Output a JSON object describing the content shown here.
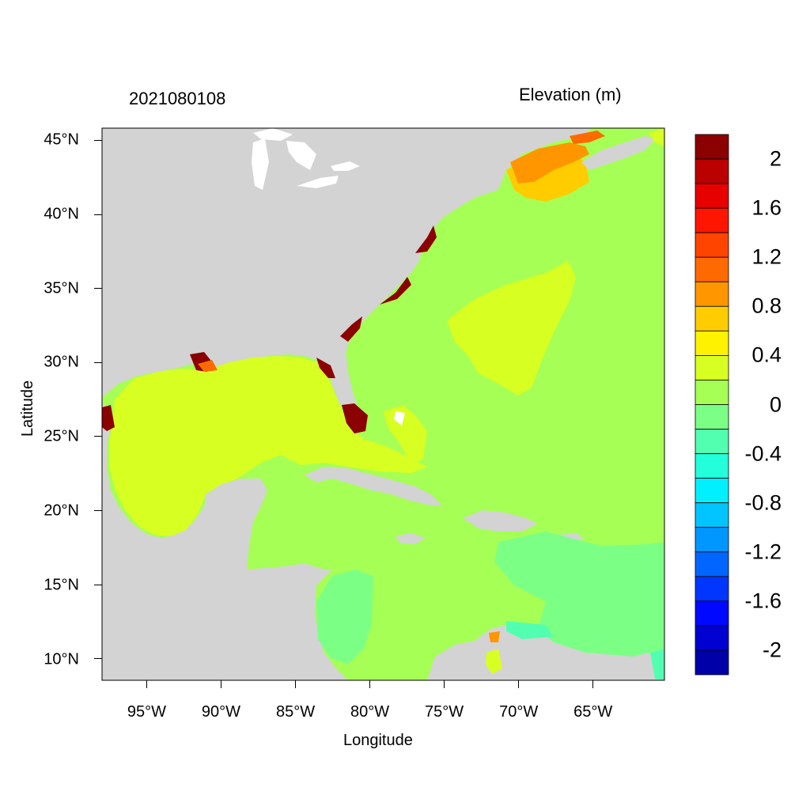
{
  "header": {
    "date_label": "2021080108",
    "variable_label": "Elevation (m)"
  },
  "axes": {
    "x_title": "Longitude",
    "y_title": "Latitude",
    "x_ticks": [
      "95°W",
      "90°W",
      "85°W",
      "80°W",
      "75°W",
      "70°W",
      "65°W"
    ],
    "x_tick_lons": [
      -95,
      -90,
      -85,
      -80,
      -75,
      -70,
      -65
    ],
    "y_ticks": [
      "10°N",
      "15°N",
      "20°N",
      "25°N",
      "30°N",
      "35°N",
      "40°N",
      "45°N"
    ],
    "y_tick_lats": [
      10,
      15,
      20,
      25,
      30,
      35,
      40,
      45
    ],
    "lon_range": [
      -98,
      -60.2
    ],
    "lat_range": [
      8.6,
      45.8
    ]
  },
  "colorbar": {
    "labels": [
      "2",
      "1.6",
      "1.2",
      "0.8",
      "0.4",
      "0",
      "-0.4",
      "-0.8",
      "-1.2",
      "-1.6",
      "-2"
    ],
    "colors": [
      "#8b0000",
      "#bb0000",
      "#e60000",
      "#ff1500",
      "#ff4400",
      "#ff6a00",
      "#ff9600",
      "#ffcc00",
      "#fff200",
      "#d8ff22",
      "#a6ff55",
      "#7cff85",
      "#52ffb0",
      "#22ffda",
      "#00f0ff",
      "#00c4ff",
      "#0096ff",
      "#0066ff",
      "#0036ff",
      "#0008ff",
      "#0000d0",
      "#0000a8"
    ]
  },
  "colors": {
    "land": "#d3d3d3",
    "ocean_zero": "#a6ff55",
    "gulf": "#d8ff22",
    "negative_zone": "#7cff85",
    "cyan_zone": "#52ffb0"
  }
}
